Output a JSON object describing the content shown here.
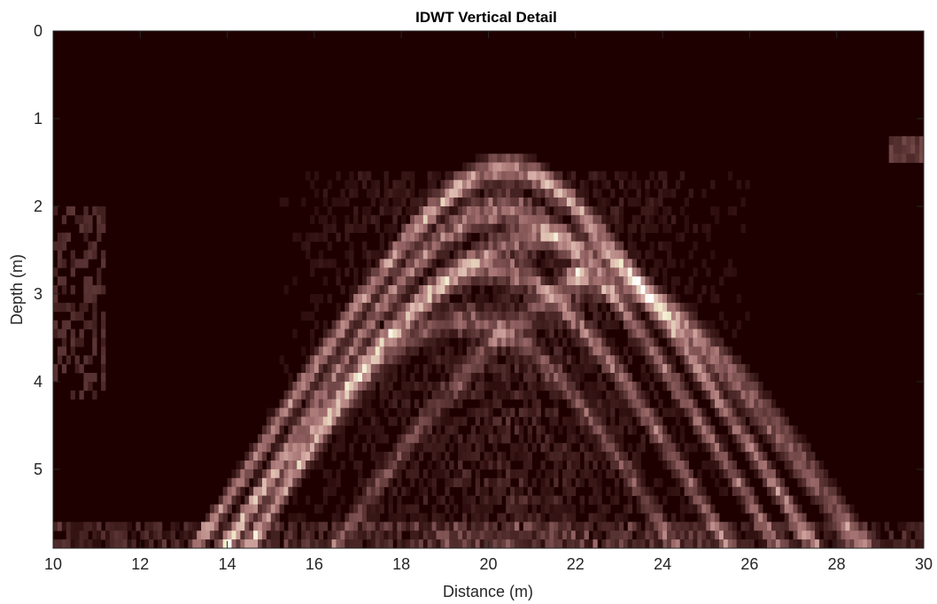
{
  "chart_data": {
    "type": "heatmap",
    "title": "IDWT Vertical Detail",
    "xlabel": "Distance (m)",
    "ylabel": "Depth (m)",
    "xlim": [
      10,
      30
    ],
    "ylim": [
      0,
      5.9
    ],
    "y_reversed": true,
    "x_ticks": [
      10,
      12,
      14,
      16,
      18,
      20,
      22,
      24,
      26,
      28,
      30
    ],
    "y_ticks": [
      0,
      1,
      2,
      3,
      4,
      5
    ],
    "colormap": "pink",
    "colormap_stops": [
      "#1e0000",
      "#5a3434",
      "#a06d6d",
      "#d4aaa4",
      "#f0e8c8",
      "#ffffff"
    ],
    "background_color": "#1e0000",
    "features": [
      {
        "label": "hyperbola apex",
        "x": 20.4,
        "y": 1.45
      },
      {
        "label": "bright reflection",
        "x": 22.0,
        "y": 2.8
      }
    ]
  }
}
